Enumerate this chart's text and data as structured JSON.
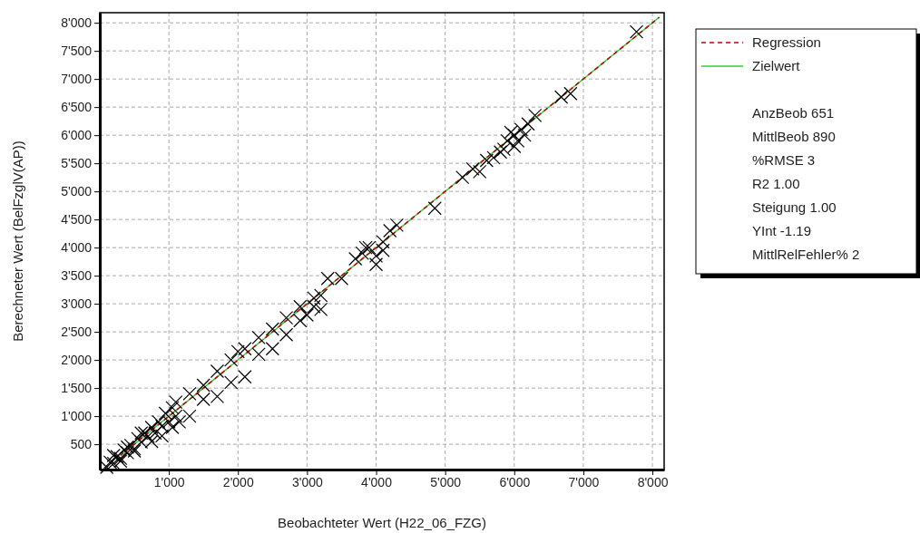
{
  "chart_data": {
    "type": "scatter",
    "xlabel": "Beobachteter Wert (H22_06_FZG)",
    "ylabel": "Berechneter Wert (BelFzglV(AP))",
    "xlim": [
      0,
      8170
    ],
    "ylim": [
      50,
      8180
    ],
    "xticks": [
      {
        "value": 1000,
        "label": "1'000"
      },
      {
        "value": 2000,
        "label": "2'000"
      },
      {
        "value": 3000,
        "label": "3'000"
      },
      {
        "value": 4000,
        "label": "4'000"
      },
      {
        "value": 5000,
        "label": "5'000"
      },
      {
        "value": 6000,
        "label": "6'000"
      },
      {
        "value": 7000,
        "label": "7'000"
      },
      {
        "value": 8000,
        "label": "8'000"
      }
    ],
    "yticks": [
      500,
      {
        "value": 1000,
        "label": "1'000"
      },
      {
        "value": 1500,
        "label": "1'500"
      },
      {
        "value": 2000,
        "label": "2'000"
      },
      {
        "value": 2500,
        "label": "2'500"
      },
      {
        "value": 3000,
        "label": "3'000"
      },
      {
        "value": 3500,
        "label": "3'500"
      },
      {
        "value": 4000,
        "label": "4'000"
      },
      {
        "value": 4500,
        "label": "4'500"
      },
      {
        "value": 5000,
        "label": "5'000"
      },
      {
        "value": 5500,
        "label": "5'500"
      },
      {
        "value": 6000,
        "label": "6'000"
      },
      {
        "value": 6500,
        "label": "6'500"
      },
      {
        "value": 7000,
        "label": "7'000"
      },
      {
        "value": 7500,
        "label": "7'500"
      },
      {
        "value": 8000,
        "label": "8'000"
      }
    ],
    "grid": true,
    "legend": "top right",
    "series": [
      {
        "marker": "cross",
        "color": "#000000",
        "x": [
          100,
          150,
          200,
          250,
          300,
          350,
          400,
          450,
          500,
          550,
          600,
          650,
          700,
          750,
          800,
          850,
          900,
          950,
          1000,
          1050,
          1100,
          750,
          900,
          1050,
          1150,
          200,
          300,
          400,
          500,
          600,
          1100,
          1300,
          1500,
          1700,
          1900,
          2000,
          1300,
          1500,
          1700,
          1900,
          2100,
          2100,
          2300,
          2500,
          2700,
          2900,
          2300,
          2500,
          2700,
          2900,
          3000,
          3100,
          3200,
          3300,
          3500,
          3200,
          3100,
          3700,
          3800,
          3900,
          4000,
          4100,
          4200,
          4000,
          4300,
          3850,
          4100,
          4850,
          5250,
          5400,
          5600,
          5800,
          5700,
          5500,
          5900,
          6000,
          6100,
          6050,
          5950,
          6200,
          6300,
          6000,
          5850,
          6150,
          6680,
          6815,
          7770
        ],
        "values": [
          90,
          180,
          160,
          280,
          250,
          400,
          350,
          480,
          420,
          600,
          540,
          700,
          640,
          800,
          700,
          900,
          820,
          1050,
          900,
          1150,
          1000,
          550,
          650,
          800,
          900,
          300,
          200,
          450,
          380,
          700,
          1250,
          1400,
          1550,
          1800,
          2000,
          2150,
          1000,
          1300,
          1350,
          1600,
          1700,
          2200,
          2400,
          2550,
          2750,
          2950,
          2100,
          2200,
          2450,
          2700,
          2800,
          3100,
          3150,
          3450,
          3450,
          2900,
          2950,
          3800,
          3900,
          4000,
          3850,
          4100,
          4300,
          3700,
          4400,
          4000,
          3950,
          4700,
          5250,
          5400,
          5550,
          5700,
          5600,
          5350,
          5900,
          6000,
          6100,
          5900,
          6050,
          6200,
          6350,
          5800,
          5750,
          6000,
          6680,
          6740,
          7840
        ]
      },
      {
        "type": "line",
        "name": "Regression",
        "color": "#c00000",
        "line_style": "dashed",
        "x": [
          300,
          8100
        ],
        "values": [
          300,
          8100
        ]
      },
      {
        "type": "line",
        "name": "Zielwert",
        "color": "#33cc33",
        "line_style": "solid",
        "x": [
          300,
          8100
        ],
        "values": [
          300,
          8100
        ]
      }
    ],
    "annotations": [
      "AnzBeob 651",
      "MittlBeob 890",
      "%RMSE 3",
      "R2 1.00",
      "Steigung 1.00",
      "YInt -1.19",
      "MittlRelFehler% 2"
    ]
  }
}
